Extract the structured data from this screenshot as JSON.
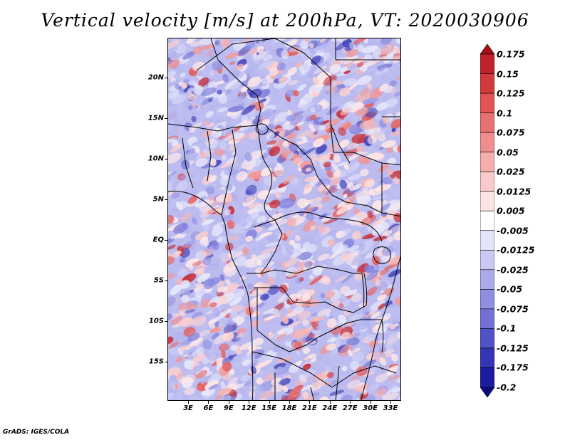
{
  "title": "Vertical velocity [m/s] at 200hPa, VT: 2020030906",
  "footer": "GrADS: IGES/COLA",
  "map": {
    "units": "m/s",
    "level": "200hPa",
    "valid_time": "2020030906",
    "lon_range": [
      0,
      35
    ],
    "lat_range": [
      -20,
      25
    ],
    "lat_labels": [
      "20N",
      "15N",
      "10N",
      "5N",
      "EQ",
      "5S",
      "10S",
      "15S"
    ],
    "lon_labels": [
      "3E",
      "6E",
      "9E",
      "12E",
      "15E",
      "18E",
      "21E",
      "24E",
      "27E",
      "30E",
      "33E"
    ]
  },
  "colorbar": {
    "labels": [
      "0.175",
      "0.15",
      "0.125",
      "0.1",
      "0.075",
      "0.05",
      "0.025",
      "0.0125",
      "0.005",
      "-0.005",
      "-0.0125",
      "-0.025",
      "-0.05",
      "-0.075",
      "-0.1",
      "-0.125",
      "-0.175",
      "-0.2"
    ],
    "colors": [
      "#a50f15",
      "#c0212a",
      "#d23b3b",
      "#e05454",
      "#e87070",
      "#ef8e8e",
      "#f5adad",
      "#facaca",
      "#fde4e4",
      "#ffffff",
      "#e4e4fb",
      "#c9c9f4",
      "#ababec",
      "#8f8fe2",
      "#7272d6",
      "#5252c8",
      "#3434b4",
      "#1c1ca0",
      "#0a0a80"
    ]
  },
  "field_palette": {
    "positive": [
      "#fde4e4",
      "#facaca",
      "#f5adad",
      "#ef8e8e",
      "#e05454",
      "#c0212a"
    ],
    "negative": [
      "#e4e4fb",
      "#c9c9f4",
      "#ababec",
      "#8f8fe2",
      "#7272d6",
      "#3434b4"
    ]
  }
}
